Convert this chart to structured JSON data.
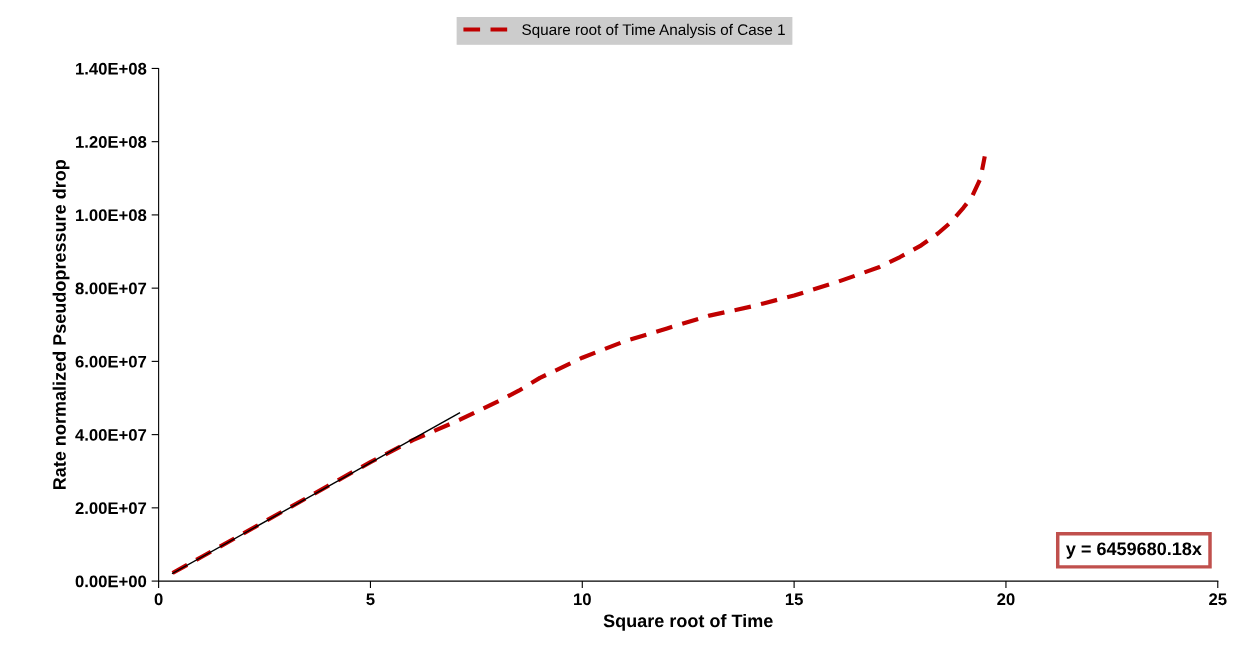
{
  "chart_data": {
    "type": "line",
    "xlabel": "Square root of Time",
    "ylabel": "Rate normalized Pseudopressure drop",
    "series": [
      {
        "name": "Square root of Time Analysis of Case 1",
        "color": "#c00000",
        "line_style": "dashed",
        "x": [
          0.33,
          1,
          2,
          3,
          4,
          5,
          6,
          7.1,
          8,
          8.5,
          9,
          10,
          11,
          12,
          13,
          14,
          15,
          16,
          17,
          17.5,
          18,
          18.4,
          18.7,
          19,
          19.2,
          19.4,
          19.5
        ],
        "values": [
          2200000.0,
          6500000.0,
          13000000.0,
          19500000.0,
          26000000.0,
          32500000.0,
          38500000.0,
          44000000.0,
          49000000.0,
          52000000.0,
          55500000.0,
          61000000.0,
          65500000.0,
          69000000.0,
          72500000.0,
          75000000.0,
          78000000.0,
          81600000.0,
          85700000.0,
          88500000.0,
          91700000.0,
          95000000.0,
          98000000.0,
          102000000.0,
          105000000.0,
          110000000.0,
          116000000.0
        ]
      },
      {
        "type": "line",
        "color": "#000000",
        "line_style": "solid",
        "x": [
          0.33,
          7.1
        ],
        "values": [
          2100000.0,
          45900000.0
        ]
      }
    ],
    "xlim": [
      0,
      25
    ],
    "xticks": [
      0,
      5,
      10,
      15,
      20,
      25
    ],
    "ylim": [
      0,
      140000000
    ],
    "yticks": [
      {
        "value": 0,
        "label": "0.00E+00"
      },
      {
        "value": 20000000,
        "label": "2.00E+07"
      },
      {
        "value": 40000000,
        "label": "4.00E+07"
      },
      {
        "value": 60000000,
        "label": "6.00E+07"
      },
      {
        "value": 80000000,
        "label": "8.00E+07"
      },
      {
        "value": 100000000,
        "label": "1.00E+08"
      },
      {
        "value": 120000000,
        "label": "1.20E+08"
      },
      {
        "value": 140000000,
        "label": "1.40E+08"
      }
    ],
    "annotations": [
      "y = 6459680.18x"
    ],
    "grid": false,
    "legend": "top",
    "marker": "none"
  }
}
